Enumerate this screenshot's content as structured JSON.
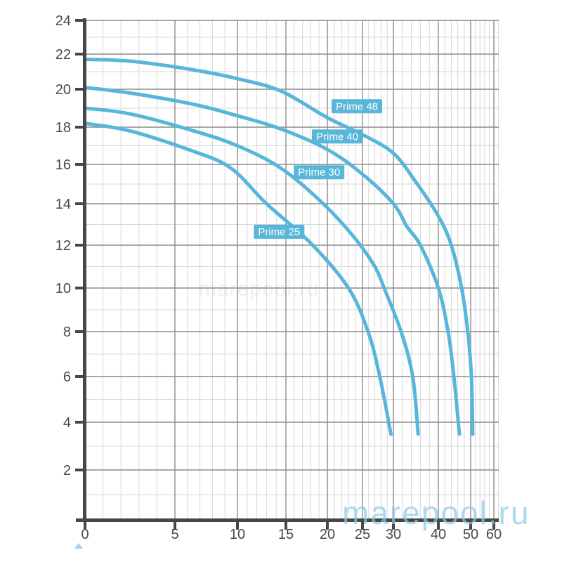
{
  "watermark": {
    "text": "marepool.ru"
  },
  "watermark_faint": {
    "text": "marepool.ru"
  },
  "chart_data": {
    "type": "line",
    "title": "",
    "xlabel": "",
    "ylabel": "",
    "x_ticks": [
      0,
      5,
      10,
      15,
      20,
      25,
      30,
      40,
      50,
      60
    ],
    "y_ticks": [
      2,
      4,
      6,
      8,
      10,
      12,
      14,
      16,
      18,
      20,
      22,
      24
    ],
    "xlim": [
      0,
      62
    ],
    "ylim": [
      0,
      24
    ],
    "grid": "on",
    "x_scale_note": "nonlinear (compressed toward right)",
    "y_scale_note": "nonlinear (slightly compressed toward top)",
    "x_minor_step_below_30": 1,
    "x_minor_step_above_30": 2,
    "y_minor_step": 1,
    "series": [
      {
        "name": "Prime 48",
        "points": [
          [
            0,
            21.7
          ],
          [
            2.5,
            21.6
          ],
          [
            6.5,
            21.1
          ],
          [
            10,
            20.6
          ],
          [
            14.5,
            19.9
          ],
          [
            20,
            18.5
          ],
          [
            25,
            17.6
          ],
          [
            30,
            16.6
          ],
          [
            35,
            15.1
          ],
          [
            40,
            13.4
          ],
          [
            44,
            12
          ],
          [
            47.2,
            10
          ],
          [
            49.1,
            8
          ],
          [
            50.3,
            6
          ],
          [
            50.9,
            3.5
          ]
        ]
      },
      {
        "name": "Prime 40",
        "points": [
          [
            0,
            20.1
          ],
          [
            2.5,
            19.8
          ],
          [
            6.5,
            19.2
          ],
          [
            10,
            18.6
          ],
          [
            14.5,
            17.9
          ],
          [
            20,
            16.8
          ],
          [
            25,
            15.5
          ],
          [
            30,
            14.0
          ],
          [
            33,
            12.9
          ],
          [
            36,
            12
          ],
          [
            40,
            10
          ],
          [
            43,
            8
          ],
          [
            44.8,
            6
          ],
          [
            46.5,
            3.5
          ]
        ]
      },
      {
        "name": "Prime 30",
        "points": [
          [
            0,
            19.0
          ],
          [
            2.5,
            18.7
          ],
          [
            6.5,
            17.8
          ],
          [
            10,
            17.0
          ],
          [
            14.5,
            15.8
          ],
          [
            19.5,
            14
          ],
          [
            24,
            12.3
          ],
          [
            27,
            11
          ],
          [
            28.5,
            10
          ],
          [
            31.7,
            8
          ],
          [
            34.3,
            6
          ],
          [
            35.5,
            3.5
          ]
        ]
      },
      {
        "name": "Prime 25",
        "points": [
          [
            0,
            18.2
          ],
          [
            2.5,
            17.8
          ],
          [
            6.5,
            16.7
          ],
          [
            9.5,
            15.8
          ],
          [
            13,
            14
          ],
          [
            18,
            12.1
          ],
          [
            23,
            10
          ],
          [
            25.9,
            8
          ],
          [
            27.8,
            6
          ],
          [
            29.6,
            3.5
          ]
        ]
      }
    ],
    "labels": [
      {
        "text": "Prime 48",
        "x": 24.2,
        "y": 19.1
      },
      {
        "text": "Prime 40",
        "x": 21.4,
        "y": 17.5
      },
      {
        "text": "Prime 30",
        "x": 19.0,
        "y": 15.6
      },
      {
        "text": "Prime 25",
        "x": 14.3,
        "y": 12.65
      }
    ],
    "colors": {
      "curve": "#58b6da",
      "label_bg": "#58b6da",
      "label_text": "#ffffff",
      "axis": "#474747",
      "tick_text": "#4a4a4a",
      "grid_major": "#8c8c8c",
      "grid_minor": "#d7d7d7",
      "watermark": "#8ecbe8"
    }
  }
}
